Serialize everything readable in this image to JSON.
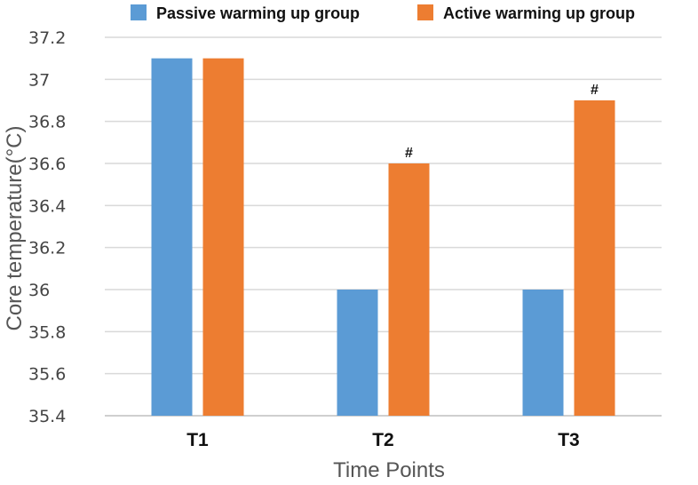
{
  "chart_data": {
    "type": "bar",
    "title": "",
    "xlabel": "Time Points",
    "ylabel": "Core temperature(°C)",
    "categories": [
      "T1",
      "T2",
      "T3"
    ],
    "ylim": [
      35.4,
      37.2
    ],
    "yticks": [
      35.4,
      35.6,
      35.8,
      36,
      36.2,
      36.4,
      36.6,
      36.8,
      37,
      37.2
    ],
    "ytick_labels": [
      "35.4",
      "35.6",
      "35.8",
      "36",
      "36.2",
      "36.4",
      "36.6",
      "36.8",
      "37",
      "37.2"
    ],
    "grid": true,
    "legend_position": "top",
    "series": [
      {
        "name": "Passive warming up group",
        "color": "#5b9bd5",
        "values": [
          37.1,
          36.0,
          36.0
        ],
        "annotations": [
          "",
          "",
          ""
        ]
      },
      {
        "name": "Active warming up group",
        "color": "#ed7d31",
        "values": [
          37.1,
          36.6,
          36.9
        ],
        "annotations": [
          "",
          "#",
          "#"
        ]
      }
    ]
  }
}
